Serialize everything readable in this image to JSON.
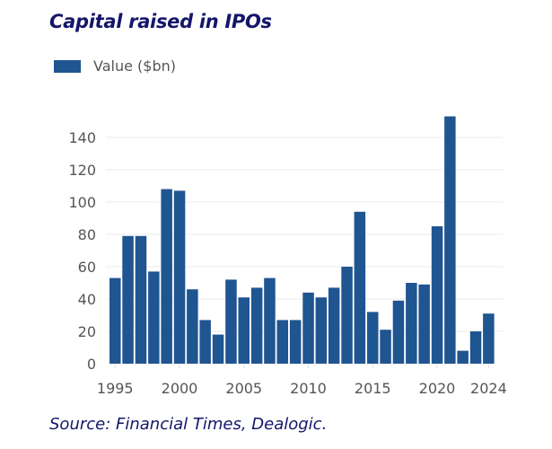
{
  "chart_data": {
    "type": "bar",
    "title": "Capital raised in IPOs",
    "legend": [
      "Value ($bn)"
    ],
    "legend_position": "top-left",
    "source": "Source: Financial Times, Dealogic.",
    "xlabel": "",
    "ylabel": "",
    "ylim": [
      0,
      150
    ],
    "yticks": [
      0,
      20,
      40,
      60,
      80,
      100,
      120,
      140
    ],
    "xtick_labels": [
      "1995",
      "2000",
      "2005",
      "2010",
      "2015",
      "2020",
      "2024"
    ],
    "grid": true,
    "colors": {
      "bar": "#1f5591",
      "title": "#14166a",
      "grid": "#ebebeb",
      "axis_text": "#555555"
    },
    "categories": [
      "1995",
      "1996",
      "1997",
      "1998",
      "1999",
      "2000",
      "2001",
      "2002",
      "2003",
      "2004",
      "2005",
      "2006",
      "2007",
      "2008",
      "2009",
      "2010",
      "2011",
      "2012",
      "2013",
      "2014",
      "2015",
      "2016",
      "2017",
      "2018",
      "2019",
      "2020",
      "2021",
      "2022",
      "2023",
      "2024"
    ],
    "series": [
      {
        "name": "Value ($bn)",
        "values": [
          53,
          79,
          79,
          57,
          108,
          107,
          46,
          27,
          18,
          52,
          41,
          47,
          53,
          27,
          27,
          44,
          41,
          47,
          60,
          94,
          32,
          21,
          39,
          50,
          49,
          85,
          153,
          8,
          20,
          31
        ]
      }
    ]
  }
}
